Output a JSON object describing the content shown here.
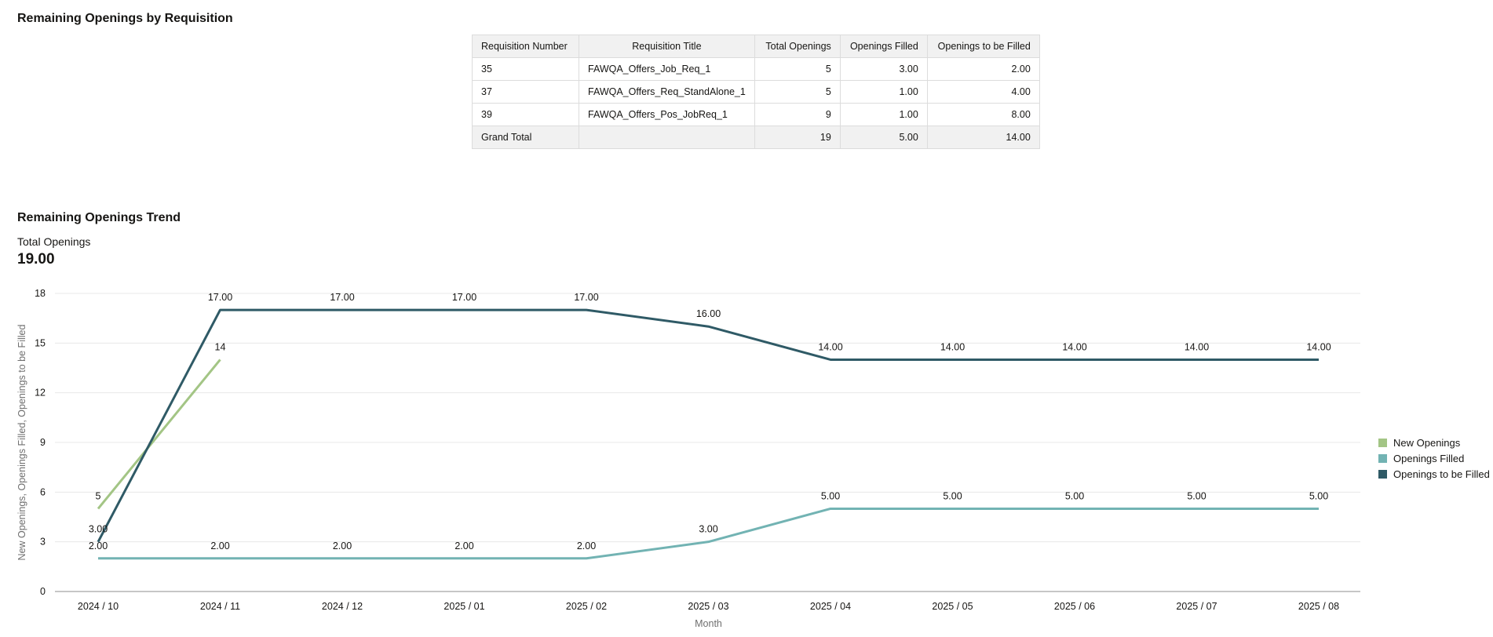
{
  "table_section": {
    "title": "Remaining Openings by Requisition",
    "columns": [
      "Requisition Number",
      "Requisition Title",
      "Total Openings",
      "Openings Filled",
      "Openings to be Filled"
    ],
    "rows": [
      [
        "35",
        "FAWQA_Offers_Job_Req_1",
        "5",
        "3.00",
        "2.00"
      ],
      [
        "37",
        "FAWQA_Offers_Req_StandAlone_1",
        "5",
        "1.00",
        "4.00"
      ],
      [
        "39",
        "FAWQA_Offers_Pos_JobReq_1",
        "9",
        "1.00",
        "8.00"
      ]
    ],
    "total_row": [
      "Grand Total",
      "",
      "19",
      "5.00",
      "14.00"
    ]
  },
  "trend_section": {
    "title": "Remaining Openings Trend",
    "kpi_label": "Total Openings",
    "kpi_value": "19.00"
  },
  "chart_data": {
    "type": "line",
    "categories": [
      "2024 / 10",
      "2024 / 11",
      "2024 / 12",
      "2025 / 01",
      "2025 / 02",
      "2025 / 03",
      "2025 / 04",
      "2025 / 05",
      "2025 / 06",
      "2025 / 07",
      "2025 / 08"
    ],
    "xlabel": "Month",
    "ylabel": "New Openings, Openings Filled, Openings to be Filled",
    "ylim": [
      0,
      18
    ],
    "yticks": [
      0,
      3,
      6,
      9,
      12,
      15,
      18
    ],
    "grid": true,
    "legend_position": "right",
    "series": [
      {
        "name": "New Openings",
        "color": "#a3c585",
        "values": [
          5,
          14,
          null,
          null,
          null,
          null,
          null,
          null,
          null,
          null,
          null
        ],
        "labels": [
          "5",
          "14",
          "",
          "",
          "",
          "",
          "",
          "",
          "",
          "",
          ""
        ]
      },
      {
        "name": "Openings Filled",
        "color": "#72b3b3",
        "values": [
          2,
          2,
          2,
          2,
          2,
          3,
          5,
          5,
          5,
          5,
          5
        ],
        "labels": [
          "2.00",
          "2.00",
          "2.00",
          "2.00",
          "2.00",
          "3.00",
          "5.00",
          "5.00",
          "5.00",
          "5.00",
          "5.00"
        ]
      },
      {
        "name": "Openings to be Filled",
        "color": "#2f5a66",
        "values": [
          3,
          17,
          17,
          17,
          17,
          16,
          14,
          14,
          14,
          14,
          14
        ],
        "labels": [
          "3.00",
          "17.00",
          "17.00",
          "17.00",
          "17.00",
          "16.00",
          "14.00",
          "14.00",
          "14.00",
          "14.00",
          "14.00"
        ]
      }
    ]
  }
}
